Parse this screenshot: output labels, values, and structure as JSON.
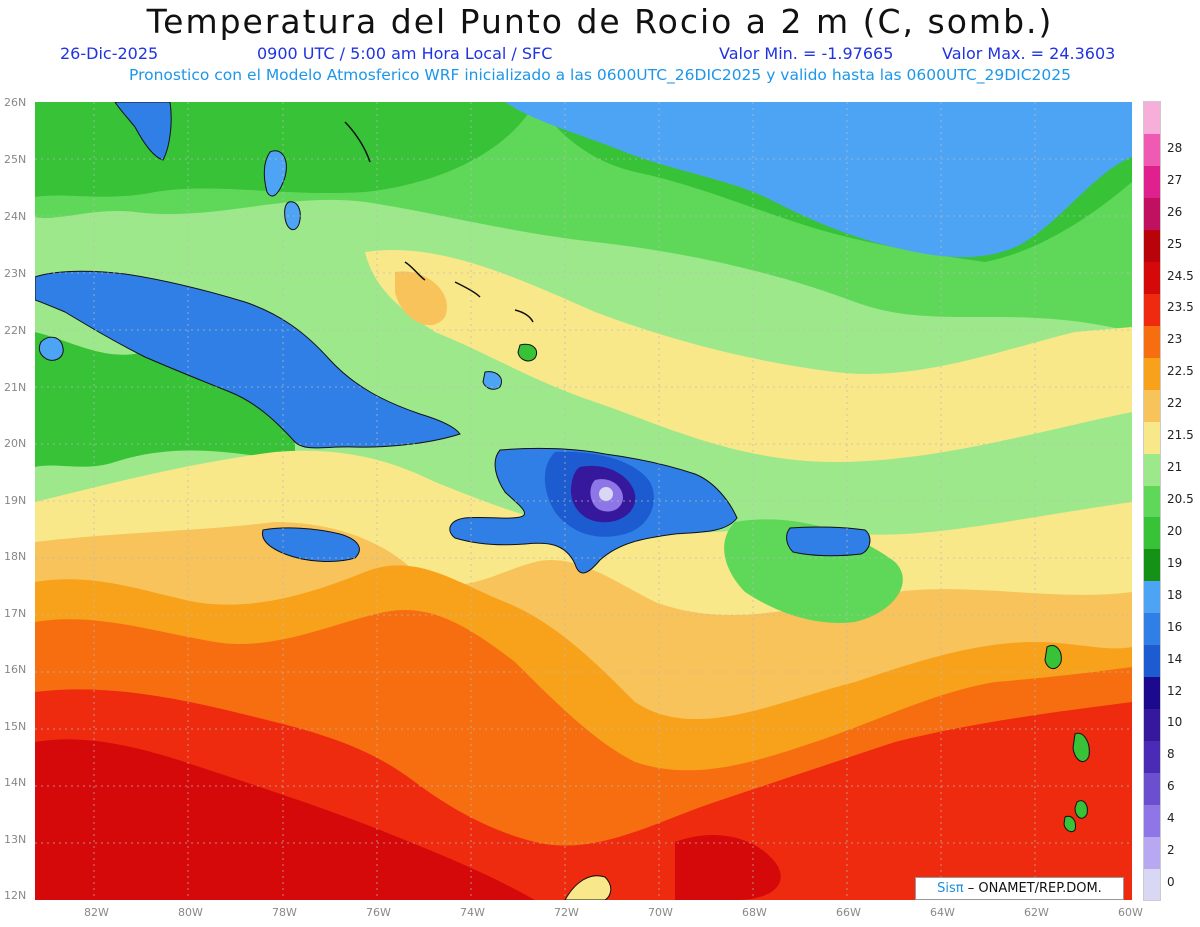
{
  "header": {
    "title": "Temperatura del Punto de Rocio a 2 m (C, somb.)",
    "date": "26-Dic-2025",
    "time_info": "0900 UTC / 5:00 am Hora Local / SFC",
    "min_value": "Valor Min. = -1.97665",
    "max_value": "Valor Max. = 24.3603",
    "subtitle": "Pronostico con el Modelo Atmosferico WRF inicializado a las 0600UTC_26DIC2025 y valido hasta las  0600UTC_29DIC2025"
  },
  "axes": {
    "lat_labels": [
      "26N",
      "25N",
      "24N",
      "23N",
      "22N",
      "21N",
      "20N",
      "19N",
      "18N",
      "17N",
      "16N",
      "15N",
      "14N",
      "13N",
      "12N"
    ],
    "lon_labels": [
      "82W",
      "80W",
      "78W",
      "76W",
      "74W",
      "72W",
      "70W",
      "68W",
      "66W",
      "64W",
      "62W",
      "60W"
    ],
    "lat_range": [
      12,
      26
    ],
    "lon_range": [
      -83.2,
      -60
    ]
  },
  "legend": {
    "unit": "C",
    "levels": [
      {
        "label": "0",
        "color": "#d8d8f4"
      },
      {
        "label": "2",
        "color": "#b7a8f1"
      },
      {
        "label": "4",
        "color": "#8f76e7"
      },
      {
        "label": "6",
        "color": "#6a4fcf"
      },
      {
        "label": "8",
        "color": "#4a2bb6"
      },
      {
        "label": "10",
        "color": "#35189c"
      },
      {
        "label": "12",
        "color": "#1c0a8e"
      },
      {
        "label": "14",
        "color": "#1c5bd0"
      },
      {
        "label": "16",
        "color": "#2f7fe6"
      },
      {
        "label": "18",
        "color": "#4ea4f4"
      },
      {
        "label": "19",
        "color": "#159215"
      },
      {
        "label": "20",
        "color": "#37c237"
      },
      {
        "label": "20.5",
        "color": "#5fd85a"
      },
      {
        "label": "21",
        "color": "#9ee88c"
      },
      {
        "label": "21.5",
        "color": "#f9e88a"
      },
      {
        "label": "22",
        "color": "#f8c35a"
      },
      {
        "label": "22.5",
        "color": "#f7a21a"
      },
      {
        "label": "23",
        "color": "#f66e10"
      },
      {
        "label": "23.5",
        "color": "#ee2b0e"
      },
      {
        "label": "24.5",
        "color": "#d5080a"
      },
      {
        "label": "25",
        "color": "#b8030a"
      },
      {
        "label": "26",
        "color": "#c01060"
      },
      {
        "label": "27",
        "color": "#e0208f"
      },
      {
        "label": "28",
        "color": "#f05ab2"
      },
      {
        "label": "",
        "color": "#f7aed8"
      }
    ]
  },
  "watermark": {
    "logo": "Sisπ",
    "text": "– ONAMET/REP.DOM."
  }
}
